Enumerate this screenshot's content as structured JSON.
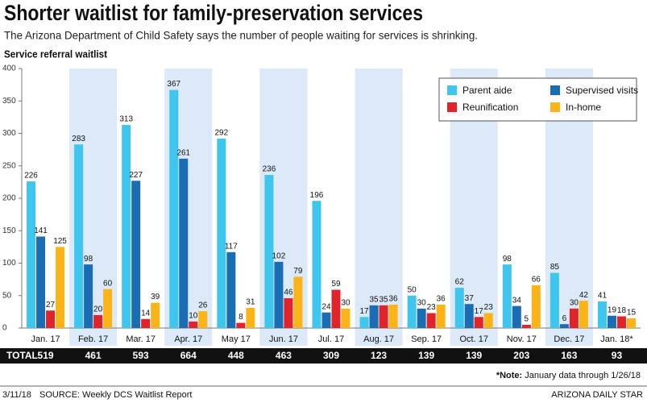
{
  "chart_data": {
    "type": "bar",
    "title": "Shorter waitlist for family-preservation services",
    "subtitle": "The Arizona Department of Child Safety says the number of people waiting for services is shrinking.",
    "y_axis_title": "Service referral waitlist",
    "categories": [
      "Jan. 17",
      "Feb. 17",
      "Mar. 17",
      "Apr. 17",
      "May 17",
      "Jun. 17",
      "Jul. 17",
      "Aug. 17",
      "Sep. 17",
      "Oct. 17",
      "Nov. 17",
      "Dec. 17",
      "Jan. 18*"
    ],
    "series": [
      {
        "name": "Parent aide",
        "color": "#3ec6ef",
        "values": [
          226,
          283,
          313,
          367,
          292,
          236,
          196,
          17,
          50,
          62,
          98,
          85,
          41
        ]
      },
      {
        "name": "Supervised visits",
        "color": "#1b6db3",
        "values": [
          141,
          98,
          227,
          261,
          117,
          102,
          24,
          35,
          30,
          37,
          34,
          6,
          19
        ]
      },
      {
        "name": "Reunification",
        "color": "#e1232b",
        "values": [
          27,
          20,
          14,
          10,
          8,
          46,
          59,
          35,
          23,
          17,
          5,
          30,
          18
        ]
      },
      {
        "name": "In-home",
        "color": "#fbb417",
        "values": [
          125,
          60,
          39,
          26,
          31,
          79,
          30,
          36,
          36,
          23,
          66,
          42,
          15
        ]
      }
    ],
    "ylim": [
      0,
      400
    ],
    "yticks": [
      0,
      50,
      100,
      150,
      200,
      250,
      300,
      350,
      400
    ],
    "legend": "upper right",
    "band_shading": "#dce9f8",
    "total_label": "TOTAL",
    "totals": [
      519,
      461,
      593,
      664,
      448,
      463,
      309,
      123,
      139,
      139,
      203,
      163,
      93
    ],
    "note_label": "*Note:",
    "note": "January data through 1/26/18",
    "date": "3/11/18",
    "source": "SOURCE: Weekly DCS Waitlist Report",
    "credit": "ARIZONA DAILY STAR"
  }
}
